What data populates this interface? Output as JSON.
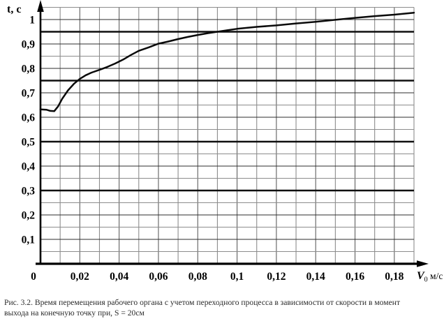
{
  "figure": {
    "background": "#ffffff"
  },
  "caption": {
    "line1": "Рис. 3.2. Время перемещения рабочего органа с учетом переходного процесса в зависимости от скорости в момент",
    "line2": "выхода на конечную точку при, S = 20см"
  },
  "chart_data": {
    "type": "line",
    "title": "",
    "ylabel": "t, c",
    "xlabel": {
      "symbol": "V",
      "subscript": "0",
      "unit": "м/с"
    },
    "xlim": [
      0,
      0.19
    ],
    "ylim": [
      0,
      1.05
    ],
    "x_minor_step": 0.01,
    "y_minor_step": 0.05,
    "grid": true,
    "legend": "none",
    "x_ticks": [
      {
        "label": "0",
        "value": 0
      },
      {
        "label": "0,02",
        "value": 0.02
      },
      {
        "label": "0,04",
        "value": 0.04
      },
      {
        "label": "0,06",
        "value": 0.06
      },
      {
        "label": "0,08",
        "value": 0.08
      },
      {
        "label": "0,1",
        "value": 0.1
      },
      {
        "label": "0,12",
        "value": 0.12
      },
      {
        "label": "0,14",
        "value": 0.14
      },
      {
        "label": "0,16",
        "value": 0.16
      },
      {
        "label": "0,18",
        "value": 0.18
      }
    ],
    "y_ticks": [
      {
        "label": "1",
        "value": 1.0
      },
      {
        "label": "0,9",
        "value": 0.9
      },
      {
        "label": "0,8",
        "value": 0.8
      },
      {
        "label": "0,7",
        "value": 0.7
      },
      {
        "label": "0,6",
        "value": 0.6
      },
      {
        "label": "0,5",
        "value": 0.5
      },
      {
        "label": "0,4",
        "value": 0.4
      },
      {
        "label": "0,3",
        "value": 0.3
      },
      {
        "label": "0,2",
        "value": 0.2
      },
      {
        "label": "0,1",
        "value": 0.1
      }
    ],
    "emphasized_y_gridlines": [
      0.3,
      0.5,
      0.75,
      0.95
    ],
    "series": [
      {
        "name": "t(V0), S=20cm",
        "points": [
          [
            0.0,
            0.632
          ],
          [
            0.003,
            0.631
          ],
          [
            0.005,
            0.626
          ],
          [
            0.007,
            0.625
          ],
          [
            0.009,
            0.645
          ],
          [
            0.011,
            0.675
          ],
          [
            0.014,
            0.71
          ],
          [
            0.017,
            0.737
          ],
          [
            0.02,
            0.757
          ],
          [
            0.023,
            0.772
          ],
          [
            0.026,
            0.783
          ],
          [
            0.03,
            0.794
          ],
          [
            0.034,
            0.806
          ],
          [
            0.038,
            0.82
          ],
          [
            0.042,
            0.836
          ],
          [
            0.046,
            0.855
          ],
          [
            0.05,
            0.872
          ],
          [
            0.055,
            0.886
          ],
          [
            0.06,
            0.901
          ],
          [
            0.065,
            0.91
          ],
          [
            0.07,
            0.92
          ],
          [
            0.075,
            0.929
          ],
          [
            0.08,
            0.937
          ],
          [
            0.085,
            0.944
          ],
          [
            0.09,
            0.95
          ],
          [
            0.095,
            0.956
          ],
          [
            0.1,
            0.962
          ],
          [
            0.11,
            0.97
          ],
          [
            0.12,
            0.976
          ],
          [
            0.13,
            0.984
          ],
          [
            0.14,
            0.991
          ],
          [
            0.15,
            0.999
          ],
          [
            0.16,
            1.007
          ],
          [
            0.17,
            1.014
          ],
          [
            0.18,
            1.02
          ],
          [
            0.185,
            1.024
          ],
          [
            0.19,
            1.028
          ]
        ]
      }
    ],
    "colors": {
      "curve": "#0a0a0a",
      "axis": "#000000",
      "grid_minor": "#8c8c8c",
      "grid_major": "#2e2e2e",
      "grid_emphasis": "#0f0f0f",
      "grid_vertical_even": "#5f5f5f",
      "grid_vertical_odd": "#8c8c8c",
      "tick_text": "#000000"
    }
  }
}
